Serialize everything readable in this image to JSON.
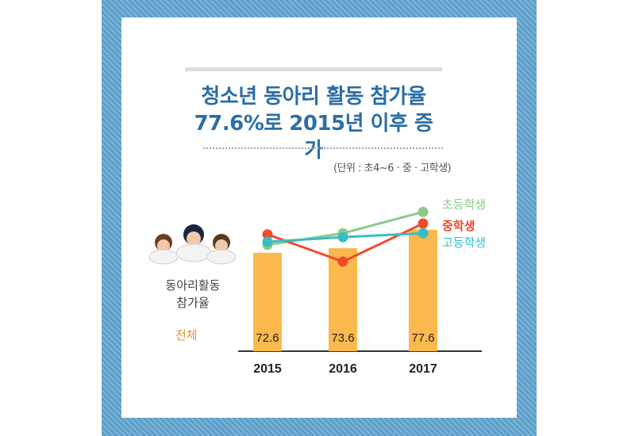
{
  "title_line1": "청소년 동아리 활동 참가율",
  "title_line2": "77.6%로 2015년 이후 증가",
  "unit": "(단위 : 초4~6 · 중 · 고학생)",
  "left_label_line1": "동아리활동",
  "left_label_line2": "참가율",
  "total_label": "전체",
  "colors": {
    "frame": "#5b9ecb",
    "title": "#2a6ea6",
    "bar": "#fbb94d",
    "elementary": "#8fc98a",
    "middle": "#ee4b2b",
    "high": "#3bbcc4"
  },
  "chart_data": {
    "type": "bar",
    "categories": [
      "2015",
      "2016",
      "2017"
    ],
    "values": [
      72.6,
      73.6,
      77.6
    ],
    "ylim": [
      0,
      100
    ],
    "grid": false,
    "legend": "right",
    "lines": [
      {
        "name": "초등학생",
        "values": [
          73.5,
          76.5,
          82.0
        ]
      },
      {
        "name": "중학생",
        "values": [
          76.2,
          69.2,
          79.0
        ]
      },
      {
        "name": "고등학생",
        "values": [
          74.3,
          75.5,
          76.5
        ]
      }
    ]
  }
}
